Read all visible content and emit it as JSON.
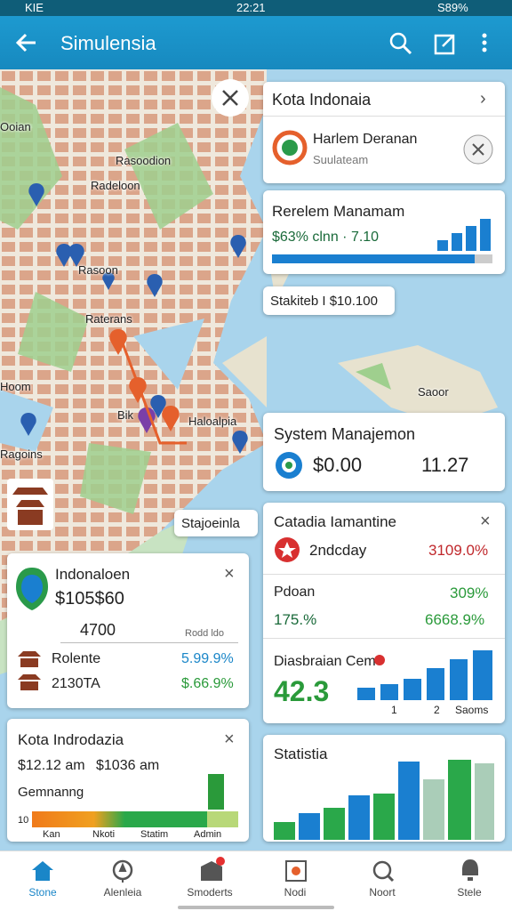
{
  "status_bar": {
    "carrier": "KIE",
    "time": "22:21",
    "battery": "S89%"
  },
  "app_bar": {
    "title": "Simulensia"
  },
  "map": {
    "labels": [
      "Ooian",
      "Rasoodion",
      "Radeloon",
      "Rasoon",
      "Raterans",
      "Hoom",
      "Bik",
      "Haloalpia",
      "Ragoins",
      "Saoor"
    ],
    "callouts": [
      "Stakiteb I $10.100",
      "Stajoeinla"
    ]
  },
  "right_cards": {
    "kota": {
      "title": "Kota Indonaia",
      "item_title": "Harlem Deranan",
      "item_subtitle": "Suulateam"
    },
    "rerelem": {
      "title": "Rerelem Manamam",
      "subtitle": "$63% clnn · 7.10"
    },
    "system": {
      "title": "System Manajemon",
      "amount": "$0.00",
      "value": "11.27"
    },
    "catadia": {
      "title": "Catadia Iamantine",
      "rows": [
        [
          "2ndcday",
          "3109.0%"
        ],
        [
          "Pdoan",
          "309%"
        ],
        [
          "175.%",
          "6668.9%"
        ]
      ]
    },
    "diasbraian": {
      "title": "Diasbraian Cem",
      "value": "42.3",
      "axis": [
        "1",
        "2",
        "Saoms"
      ]
    },
    "statistia": {
      "title": "Statistia"
    }
  },
  "left_cards": {
    "indonaloen": {
      "title": "Indonaloen",
      "amount": "$105$60",
      "value": "4700",
      "note": "Rodd ldo",
      "rows": [
        [
          "Rolente",
          "5.99.9%"
        ],
        [
          "2130TA",
          "$.66.9%"
        ]
      ]
    },
    "kota": {
      "title": "Kota Indrodazia",
      "times": [
        "$12.12 am",
        "$1036 am"
      ],
      "label": "Gemnanng",
      "scale_start": "10",
      "axis": [
        "Kan",
        "Nkoti",
        "Statim",
        "Admin"
      ]
    }
  },
  "bottom_nav": {
    "items": [
      "Stone",
      "Alenleia",
      "Smoderts",
      "Nodi",
      "Noort",
      "Stele"
    ]
  }
}
